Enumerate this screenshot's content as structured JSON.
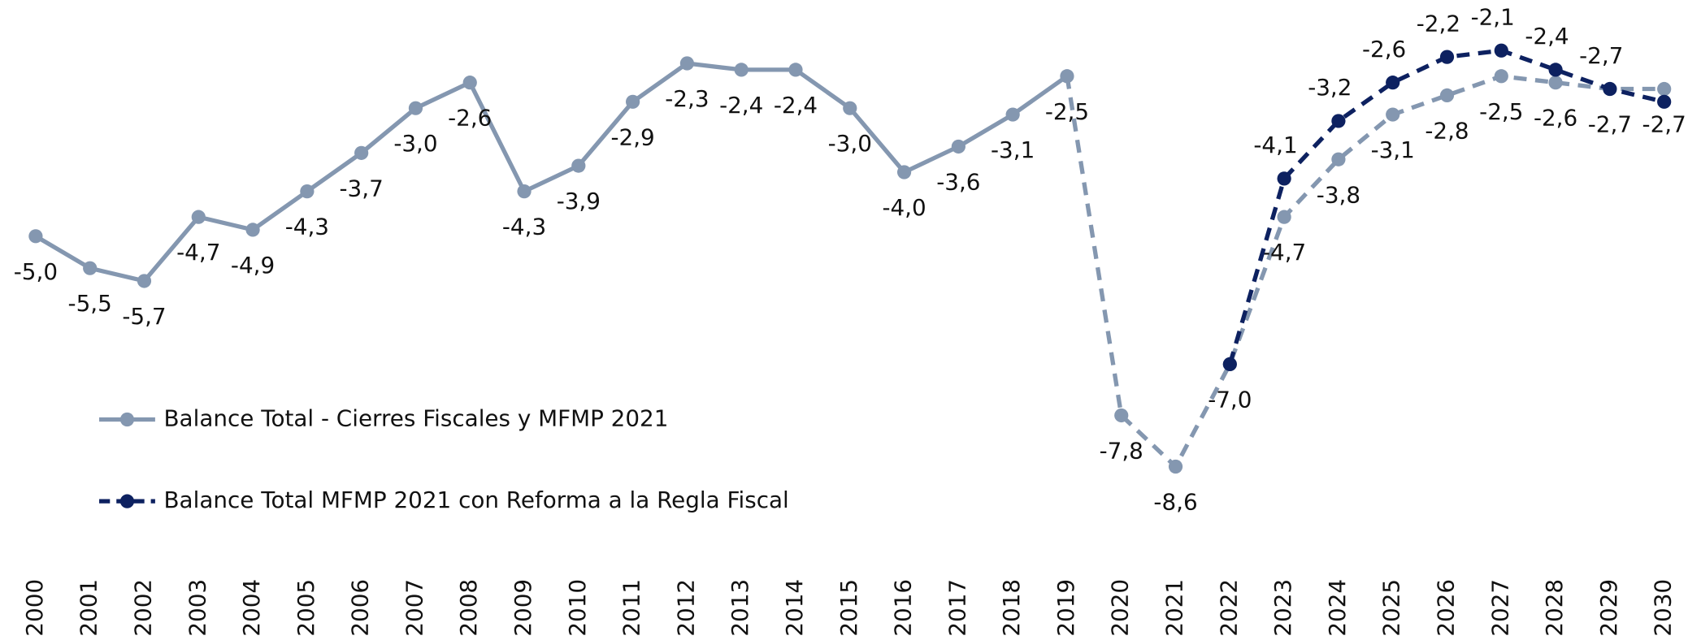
{
  "chart_data": {
    "type": "line",
    "categories": [
      "2000",
      "2001",
      "2002",
      "2003",
      "2004",
      "2005",
      "2006",
      "2007",
      "2008",
      "2009",
      "2010",
      "2011",
      "2012",
      "2013",
      "2014",
      "2015",
      "2016",
      "2017",
      "2018",
      "2019",
      "2020",
      "2021",
      "2022",
      "2023",
      "2024",
      "2025",
      "2026",
      "2027",
      "2028",
      "2029",
      "2030"
    ],
    "series": [
      {
        "name": "Balance Total - Cierres Fiscales y MFMP 2021",
        "color": "#8497b0",
        "dashed_from_index": 19,
        "values": [
          -5.0,
          -5.5,
          -5.7,
          -4.7,
          -4.9,
          -4.3,
          -3.7,
          -3.0,
          -2.6,
          -4.3,
          -3.9,
          -2.9,
          -2.3,
          -2.4,
          -2.4,
          -3.0,
          -4.0,
          -3.6,
          -3.1,
          -2.5,
          -7.8,
          -8.6,
          -7.0,
          -4.7,
          -3.8,
          -3.1,
          -2.8,
          -2.5,
          -2.6,
          -2.7,
          -2.7
        ],
        "value_labels": [
          "-5,0",
          "-5,5",
          "-5,7",
          "-4,7",
          "-4,9",
          "-4,3",
          "-3,7",
          "-3,0",
          "-2,6",
          "-4,3",
          "-3,9",
          "-2,9",
          "-2,3",
          "-2,4",
          "-2,4",
          "-3,0",
          "-4,0",
          "-3,6",
          "-3,1",
          "-2,5",
          "-7,8",
          "-8,6",
          "-7,0",
          "-4,7",
          "-3,8",
          "-3,1",
          "-2,8",
          "-2,5",
          "-2,6",
          "-2,7",
          "-2,7"
        ]
      },
      {
        "name": "Balance Total MFMP 2021 con Reforma a la Regla Fiscal",
        "color": "#0d2160",
        "dashed_from_index": 0,
        "values": [
          null,
          null,
          null,
          null,
          null,
          null,
          null,
          null,
          null,
          null,
          null,
          null,
          null,
          null,
          null,
          null,
          null,
          null,
          null,
          null,
          null,
          null,
          -7.0,
          -4.1,
          -3.2,
          -2.6,
          -2.2,
          -2.1,
          -2.4,
          -2.7,
          -2.9
        ],
        "value_labels": [
          null,
          null,
          null,
          null,
          null,
          null,
          null,
          null,
          null,
          null,
          null,
          null,
          null,
          null,
          null,
          null,
          null,
          null,
          null,
          null,
          null,
          null,
          null,
          "-4,1",
          "-3,2",
          "-2,6",
          "-2,2",
          "-2,1",
          "-2,4",
          "-2,7",
          null
        ]
      }
    ],
    "ylim": [
      -9,
      -1.5
    ],
    "legend": "left"
  }
}
